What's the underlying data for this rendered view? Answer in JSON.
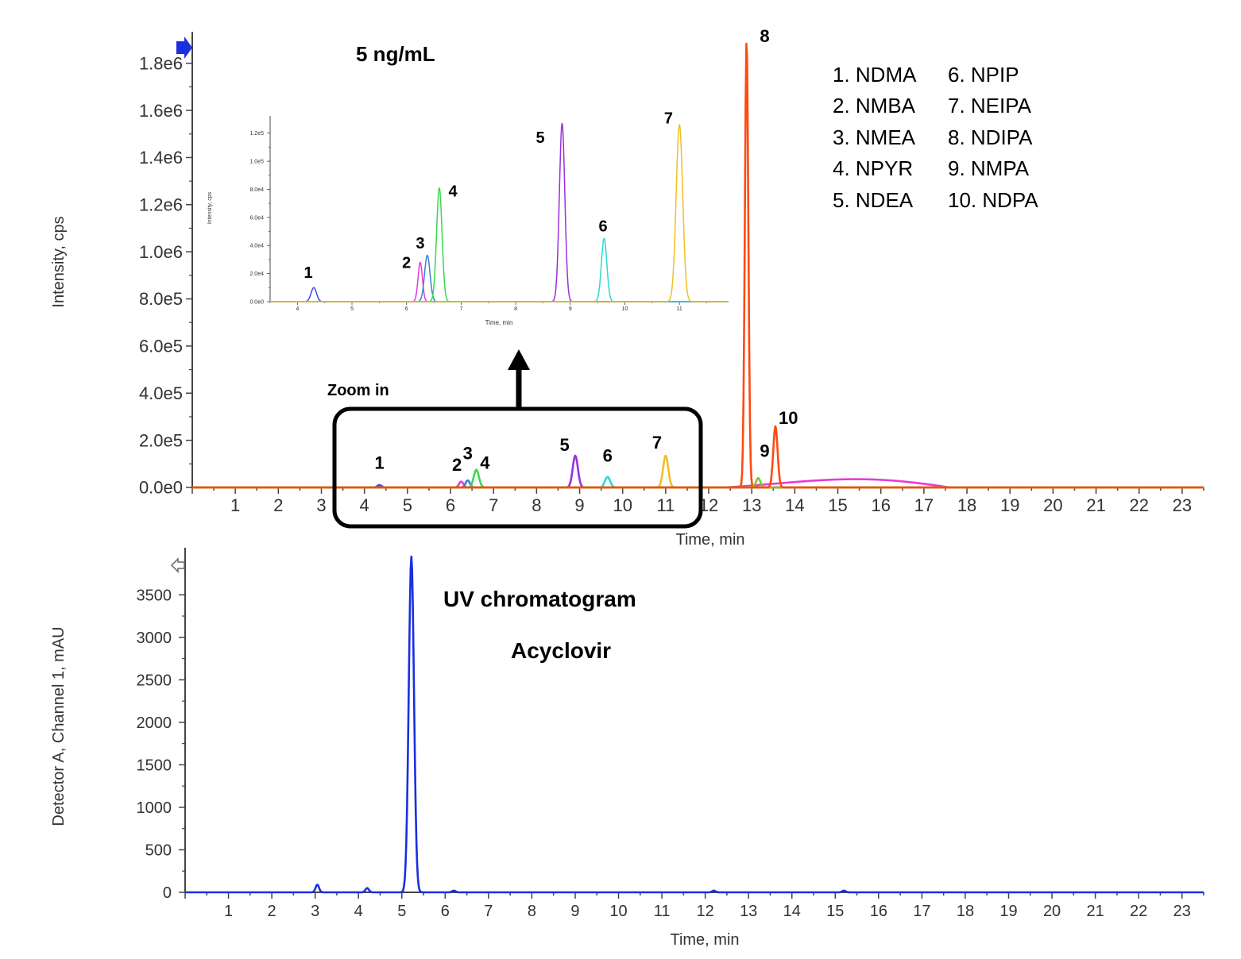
{
  "chart_data": [
    {
      "id": "ms",
      "type": "line",
      "title": "5 ng/mL",
      "xlabel": "Time, min",
      "ylabel": "Intensity, cps",
      "xlim": [
        0,
        23.5
      ],
      "ylim": [
        0,
        1900000
      ],
      "xticks": [
        1,
        2,
        3,
        4,
        5,
        6,
        7,
        8,
        9,
        10,
        11,
        12,
        13,
        14,
        15,
        16,
        17,
        18,
        19,
        20,
        21,
        22,
        23
      ],
      "yticks": [
        {
          "value": 0,
          "label": "0.0e0"
        },
        {
          "value": 200000,
          "label": "2.0e5"
        },
        {
          "value": 400000,
          "label": "4.0e5"
        },
        {
          "value": 600000,
          "label": "6.0e5"
        },
        {
          "value": 800000,
          "label": "8.0e5"
        },
        {
          "value": 1000000,
          "label": "1.0e6"
        },
        {
          "value": 1200000,
          "label": "1.2e6"
        },
        {
          "value": 1400000,
          "label": "1.4e6"
        },
        {
          "value": 1600000,
          "label": "1.6e6"
        },
        {
          "value": 1800000,
          "label": "1.8e6"
        }
      ],
      "series": [
        {
          "name": "1. NDMA",
          "color": "#3a4fd8",
          "peaks": [
            {
              "t": 4.35,
              "h": 10000,
              "w": 0.05
            }
          ]
        },
        {
          "name": "2. NMBA",
          "color": "#e83ad8",
          "peaks": [
            {
              "t": 6.25,
              "h": 25000,
              "w": 0.05
            }
          ],
          "hump": {
            "start": 12.3,
            "end": 17.6,
            "max": 35000
          }
        },
        {
          "name": "3. NMEA",
          "color": "#3a7fd8",
          "peaks": [
            {
              "t": 6.4,
              "h": 30000,
              "w": 0.05
            }
          ]
        },
        {
          "name": "4. NPYR",
          "color": "#3ad84f",
          "peaks": [
            {
              "t": 6.6,
              "h": 75000,
              "w": 0.06
            }
          ]
        },
        {
          "name": "5. NDEA",
          "color": "#9a2fe0",
          "peaks": [
            {
              "t": 8.9,
              "h": 135000,
              "w": 0.06
            }
          ]
        },
        {
          "name": "6. NPIP",
          "color": "#2fd8d8",
          "peaks": [
            {
              "t": 9.65,
              "h": 45000,
              "w": 0.06
            }
          ]
        },
        {
          "name": "7. NEIPA",
          "color": "#f0c020",
          "peaks": [
            {
              "t": 11.0,
              "h": 135000,
              "w": 0.06
            }
          ]
        },
        {
          "name": "8. NDIPA",
          "color": "#ff4a10",
          "peaks": [
            {
              "t": 12.88,
              "h": 1900000,
              "w": 0.04
            }
          ]
        },
        {
          "name": "9. NMPA",
          "color": "#7ac830",
          "peaks": [
            {
              "t": 13.15,
              "h": 40000,
              "w": 0.05
            }
          ]
        },
        {
          "name": "10. NDPA",
          "color": "#ff4a10",
          "peaks": [
            {
              "t": 13.55,
              "h": 260000,
              "w": 0.05
            }
          ]
        }
      ],
      "peak_labels": [
        {
          "text": "1",
          "t": 4.35,
          "v": 80000
        },
        {
          "text": "2",
          "t": 6.15,
          "v": 70000
        },
        {
          "text": "3",
          "t": 6.4,
          "v": 120000
        },
        {
          "text": "4",
          "t": 6.8,
          "v": 80000
        },
        {
          "text": "5",
          "t": 8.65,
          "v": 155000
        },
        {
          "text": "6",
          "t": 9.65,
          "v": 110000
        },
        {
          "text": "7",
          "t": 10.8,
          "v": 165000
        },
        {
          "text": "8",
          "t": 13.3,
          "v": 1890000
        },
        {
          "text": "9",
          "t": 13.3,
          "v": 130000
        },
        {
          "text": "10",
          "t": 13.85,
          "v": 270000
        }
      ],
      "annotations": {
        "zoom_label": "Zoom in"
      }
    },
    {
      "id": "inset",
      "type": "line",
      "xlabel": "Time, min",
      "ylabel": "Intensity, cps",
      "xlim": [
        3.5,
        11.9
      ],
      "ylim": [
        0,
        130000
      ],
      "xticks": [
        4,
        5,
        6,
        7,
        8,
        9,
        10,
        11
      ],
      "yticks": [
        {
          "value": 0,
          "label": "0.0e0"
        },
        {
          "value": 20000,
          "label": "2.0e4"
        },
        {
          "value": 40000,
          "label": "4.0e4"
        },
        {
          "value": 60000,
          "label": "6.0e4"
        },
        {
          "value": 80000,
          "label": "8.0e4"
        },
        {
          "value": 100000,
          "label": "1.0e5"
        },
        {
          "value": 120000,
          "label": "1.2e5"
        }
      ],
      "series": [
        {
          "name": "1. NDMA",
          "color": "#3a4fd8",
          "peaks": [
            {
              "t": 4.3,
              "h": 10000,
              "w": 0.05
            }
          ]
        },
        {
          "name": "2. NMBA",
          "color": "#e83ad8",
          "peaks": [
            {
              "t": 6.25,
              "h": 28000,
              "w": 0.04
            }
          ]
        },
        {
          "name": "3. NMEA",
          "color": "#3a7fd8",
          "peaks": [
            {
              "t": 6.38,
              "h": 33000,
              "w": 0.05
            }
          ]
        },
        {
          "name": "4. NPYR",
          "color": "#3ad84f",
          "peaks": [
            {
              "t": 6.6,
              "h": 81000,
              "w": 0.05
            }
          ]
        },
        {
          "name": "5. NDEA",
          "color": "#9a2fe0",
          "peaks": [
            {
              "t": 8.85,
              "h": 127000,
              "w": 0.05
            }
          ]
        },
        {
          "name": "6. NPIP",
          "color": "#2fd8d8",
          "peaks": [
            {
              "t": 9.62,
              "h": 45000,
              "w": 0.05
            }
          ]
        },
        {
          "name": "7. NEIPA",
          "color": "#f0c020",
          "peaks": [
            {
              "t": 11.0,
              "h": 126000,
              "w": 0.06
            }
          ]
        }
      ],
      "peak_labels": [
        {
          "text": "1",
          "t": 4.2,
          "v": 17000
        },
        {
          "text": "2",
          "t": 6.0,
          "v": 24000
        },
        {
          "text": "3",
          "t": 6.25,
          "v": 38000
        },
        {
          "text": "4",
          "t": 6.85,
          "v": 75000
        },
        {
          "text": "5",
          "t": 8.45,
          "v": 113000
        },
        {
          "text": "6",
          "t": 9.6,
          "v": 50000
        },
        {
          "text": "7",
          "t": 10.8,
          "v": 127000
        }
      ]
    },
    {
      "id": "uv",
      "type": "line",
      "title": "UV chromatogram",
      "subtitle": "Acyclovir",
      "xlabel": "Time, min",
      "ylabel": "Detector A, Channel 1, mAU",
      "xlim": [
        0,
        23.5
      ],
      "ylim": [
        0,
        3960
      ],
      "xticks": [
        1,
        2,
        3,
        4,
        5,
        6,
        7,
        8,
        9,
        10,
        11,
        12,
        13,
        14,
        15,
        16,
        17,
        18,
        19,
        20,
        21,
        22,
        23
      ],
      "yticks": [
        {
          "value": 0,
          "label": "0"
        },
        {
          "value": 500,
          "label": "500"
        },
        {
          "value": 1000,
          "label": "1000"
        },
        {
          "value": 1500,
          "label": "1500"
        },
        {
          "value": 2000,
          "label": "2000"
        },
        {
          "value": 2500,
          "label": "2500"
        },
        {
          "value": 3000,
          "label": "3000"
        },
        {
          "value": 3500,
          "label": "3500"
        }
      ],
      "series": [
        {
          "name": "Acyclovir",
          "color": "#1a2fe0",
          "peaks": [
            {
              "t": 3.05,
              "h": 90,
              "w": 0.04
            },
            {
              "t": 4.2,
              "h": 50,
              "w": 0.04
            },
            {
              "t": 5.22,
              "h": 3950,
              "w": 0.06
            },
            {
              "t": 6.2,
              "h": 20,
              "w": 0.04
            },
            {
              "t": 12.2,
              "h": 20,
              "w": 0.04
            },
            {
              "t": 15.2,
              "h": 20,
              "w": 0.04
            }
          ]
        }
      ]
    }
  ],
  "legend": {
    "items": [
      "1. NDMA",
      "2. NMBA",
      "3. NMEA",
      "4. NPYR",
      "5. NDEA",
      "6. NPIP",
      "7. NEIPA",
      "8. NDIPA",
      "9. NMPA",
      "10. NDPA"
    ]
  }
}
